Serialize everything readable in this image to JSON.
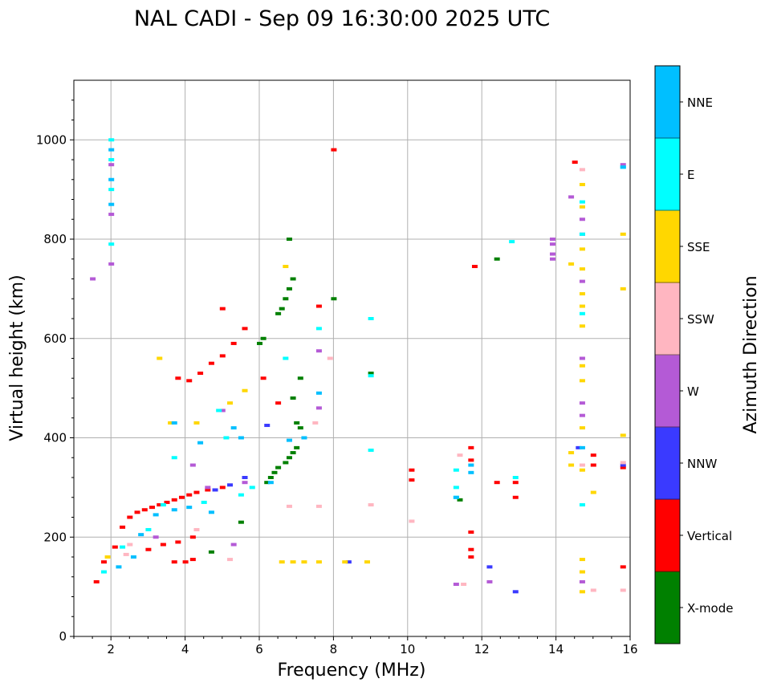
{
  "chart_data": {
    "type": "scatter",
    "title": "NAL CADI - Sep 09 16:30:00 2025 UTC",
    "xlabel": "Frequency (MHz)",
    "ylabel": "Virtual height (km)",
    "xlim": [
      1,
      16
    ],
    "ylim": [
      0,
      1120
    ],
    "xticks": [
      2,
      4,
      6,
      8,
      10,
      12,
      14,
      16
    ],
    "xtick_labels": [
      "2",
      "4",
      "6",
      "8",
      "10",
      "12",
      "14",
      "16"
    ],
    "yticks": [
      0,
      200,
      400,
      600,
      800,
      1000
    ],
    "ytick_labels": [
      "0",
      "200",
      "400",
      "600",
      "800",
      "1000"
    ],
    "grid": true,
    "colorbar": {
      "label": "Azimuth Direction",
      "categories": [
        {
          "name": "X-mode",
          "color": "#008000"
        },
        {
          "name": "Vertical",
          "color": "#ff0000"
        },
        {
          "name": "NNW",
          "color": "#3a3aff"
        },
        {
          "name": "W",
          "color": "#b45ad6"
        },
        {
          "name": "SSW",
          "color": "#ffb6c1"
        },
        {
          "name": "SSE",
          "color": "#ffd700"
        },
        {
          "name": "E",
          "color": "#00ffff"
        },
        {
          "name": "NNE",
          "color": "#00bfff"
        }
      ]
    },
    "series": [
      {
        "name": "X-mode",
        "points": [
          [
            6.0,
            590
          ],
          [
            6.1,
            600
          ],
          [
            6.2,
            310
          ],
          [
            6.3,
            320
          ],
          [
            6.4,
            330
          ],
          [
            6.5,
            340
          ],
          [
            6.5,
            650
          ],
          [
            6.6,
            660
          ],
          [
            6.7,
            350
          ],
          [
            6.7,
            680
          ],
          [
            6.8,
            360
          ],
          [
            6.8,
            700
          ],
          [
            6.9,
            370
          ],
          [
            6.9,
            720
          ],
          [
            7.0,
            380
          ],
          [
            7.0,
            430
          ],
          [
            7.1,
            420
          ],
          [
            6.9,
            480
          ],
          [
            7.1,
            520
          ],
          [
            6.8,
            800
          ],
          [
            5.5,
            230
          ],
          [
            4.7,
            170
          ],
          [
            8.0,
            680
          ],
          [
            9.0,
            530
          ],
          [
            11.4,
            275
          ],
          [
            12.4,
            760
          ]
        ]
      },
      {
        "name": "Vertical",
        "points": [
          [
            1.6,
            110
          ],
          [
            1.8,
            150
          ],
          [
            2.1,
            180
          ],
          [
            2.3,
            220
          ],
          [
            2.5,
            240
          ],
          [
            2.7,
            250
          ],
          [
            2.9,
            255
          ],
          [
            3.1,
            260
          ],
          [
            3.3,
            265
          ],
          [
            3.5,
            270
          ],
          [
            3.7,
            275
          ],
          [
            3.9,
            280
          ],
          [
            4.1,
            285
          ],
          [
            4.3,
            290
          ],
          [
            4.6,
            295
          ],
          [
            5.0,
            300
          ],
          [
            3.0,
            175
          ],
          [
            3.4,
            185
          ],
          [
            3.8,
            190
          ],
          [
            4.2,
            200
          ],
          [
            3.7,
            150
          ],
          [
            4.0,
            150
          ],
          [
            4.2,
            155
          ],
          [
            3.8,
            520
          ],
          [
            4.1,
            515
          ],
          [
            4.4,
            530
          ],
          [
            4.7,
            550
          ],
          [
            5.0,
            565
          ],
          [
            5.3,
            590
          ],
          [
            5.6,
            620
          ],
          [
            5.0,
            660
          ],
          [
            6.1,
            520
          ],
          [
            6.5,
            470
          ],
          [
            7.6,
            665
          ],
          [
            8.0,
            980
          ],
          [
            10.1,
            335
          ],
          [
            10.1,
            315
          ],
          [
            11.7,
            380
          ],
          [
            11.7,
            355
          ],
          [
            11.7,
            210
          ],
          [
            11.7,
            175
          ],
          [
            11.7,
            160
          ],
          [
            12.4,
            310
          ],
          [
            12.9,
            310
          ],
          [
            12.9,
            280
          ],
          [
            11.8,
            745
          ],
          [
            14.5,
            955
          ],
          [
            15.0,
            365
          ],
          [
            15.0,
            345
          ],
          [
            15.8,
            140
          ],
          [
            15.8,
            340
          ]
        ]
      },
      {
        "name": "NNW",
        "points": [
          [
            4.8,
            295
          ],
          [
            5.2,
            305
          ],
          [
            6.2,
            425
          ],
          [
            8.4,
            150
          ],
          [
            12.2,
            140
          ],
          [
            12.9,
            90
          ],
          [
            14.6,
            380
          ],
          [
            15.8,
            345
          ],
          [
            5.6,
            320
          ]
        ]
      },
      {
        "name": "W",
        "points": [
          [
            1.5,
            720
          ],
          [
            2.0,
            750
          ],
          [
            2.0,
            850
          ],
          [
            2.0,
            950
          ],
          [
            3.2,
            200
          ],
          [
            4.2,
            345
          ],
          [
            4.6,
            300
          ],
          [
            5.3,
            185
          ],
          [
            5.0,
            455
          ],
          [
            5.6,
            310
          ],
          [
            7.6,
            460
          ],
          [
            7.6,
            575
          ],
          [
            11.3,
            105
          ],
          [
            12.2,
            110
          ],
          [
            13.9,
            800
          ],
          [
            13.9,
            790
          ],
          [
            13.9,
            770
          ],
          [
            13.9,
            760
          ],
          [
            14.4,
            885
          ],
          [
            14.7,
            840
          ],
          [
            14.7,
            810
          ],
          [
            14.7,
            715
          ],
          [
            14.7,
            560
          ],
          [
            14.7,
            470
          ],
          [
            14.7,
            445
          ],
          [
            14.7,
            110
          ],
          [
            15.8,
            950
          ]
        ]
      },
      {
        "name": "SSW",
        "points": [
          [
            2.4,
            165
          ],
          [
            2.5,
            185
          ],
          [
            4.3,
            215
          ],
          [
            5.2,
            155
          ],
          [
            6.8,
            262
          ],
          [
            7.6,
            262
          ],
          [
            7.5,
            430
          ],
          [
            7.9,
            560
          ],
          [
            9.0,
            265
          ],
          [
            10.1,
            232
          ],
          [
            11.5,
            105
          ],
          [
            11.4,
            365
          ],
          [
            14.7,
            940
          ],
          [
            14.7,
            345
          ],
          [
            15.0,
            93
          ],
          [
            15.8,
            93
          ],
          [
            15.8,
            350
          ]
        ]
      },
      {
        "name": "SSE",
        "points": [
          [
            1.9,
            160
          ],
          [
            3.3,
            560
          ],
          [
            3.6,
            430
          ],
          [
            4.3,
            430
          ],
          [
            5.2,
            470
          ],
          [
            5.6,
            495
          ],
          [
            6.7,
            745
          ],
          [
            6.6,
            150
          ],
          [
            6.9,
            150
          ],
          [
            7.2,
            150
          ],
          [
            7.6,
            150
          ],
          [
            8.3,
            150
          ],
          [
            8.9,
            150
          ],
          [
            14.4,
            750
          ],
          [
            14.4,
            370
          ],
          [
            14.4,
            345
          ],
          [
            14.7,
            910
          ],
          [
            14.7,
            865
          ],
          [
            14.7,
            780
          ],
          [
            14.7,
            740
          ],
          [
            14.7,
            690
          ],
          [
            14.7,
            665
          ],
          [
            14.7,
            625
          ],
          [
            14.7,
            545
          ],
          [
            14.7,
            515
          ],
          [
            14.7,
            420
          ],
          [
            14.7,
            335
          ],
          [
            14.7,
            155
          ],
          [
            14.7,
            130
          ],
          [
            14.7,
            90
          ],
          [
            15.0,
            290
          ],
          [
            15.8,
            810
          ],
          [
            15.8,
            700
          ],
          [
            15.8,
            405
          ]
        ]
      },
      {
        "name": "E",
        "points": [
          [
            2.0,
            1000
          ],
          [
            2.0,
            960
          ],
          [
            2.0,
            900
          ],
          [
            2.0,
            790
          ],
          [
            1.8,
            130
          ],
          [
            2.3,
            180
          ],
          [
            3.0,
            215
          ],
          [
            3.4,
            265
          ],
          [
            3.7,
            360
          ],
          [
            4.5,
            270
          ],
          [
            4.9,
            455
          ],
          [
            5.1,
            400
          ],
          [
            5.5,
            285
          ],
          [
            5.8,
            300
          ],
          [
            6.7,
            560
          ],
          [
            7.6,
            620
          ],
          [
            9.0,
            640
          ],
          [
            9.0,
            525
          ],
          [
            9.0,
            375
          ],
          [
            11.3,
            335
          ],
          [
            11.3,
            300
          ],
          [
            11.3,
            280
          ],
          [
            12.9,
            320
          ],
          [
            12.8,
            795
          ],
          [
            14.7,
            875
          ],
          [
            14.7,
            810
          ],
          [
            14.7,
            650
          ],
          [
            14.7,
            265
          ],
          [
            15.8,
            945
          ]
        ]
      },
      {
        "name": "NNE",
        "points": [
          [
            2.0,
            980
          ],
          [
            2.0,
            920
          ],
          [
            2.0,
            870
          ],
          [
            2.2,
            140
          ],
          [
            2.6,
            160
          ],
          [
            2.8,
            205
          ],
          [
            3.2,
            245
          ],
          [
            3.7,
            255
          ],
          [
            4.1,
            260
          ],
          [
            4.7,
            250
          ],
          [
            4.4,
            390
          ],
          [
            3.7,
            430
          ],
          [
            5.3,
            420
          ],
          [
            5.5,
            400
          ],
          [
            6.3,
            310
          ],
          [
            6.8,
            395
          ],
          [
            7.2,
            400
          ],
          [
            7.6,
            490
          ],
          [
            11.7,
            345
          ],
          [
            11.7,
            330
          ],
          [
            11.3,
            280
          ],
          [
            14.7,
            380
          ],
          [
            15.8,
            945
          ]
        ]
      }
    ]
  }
}
